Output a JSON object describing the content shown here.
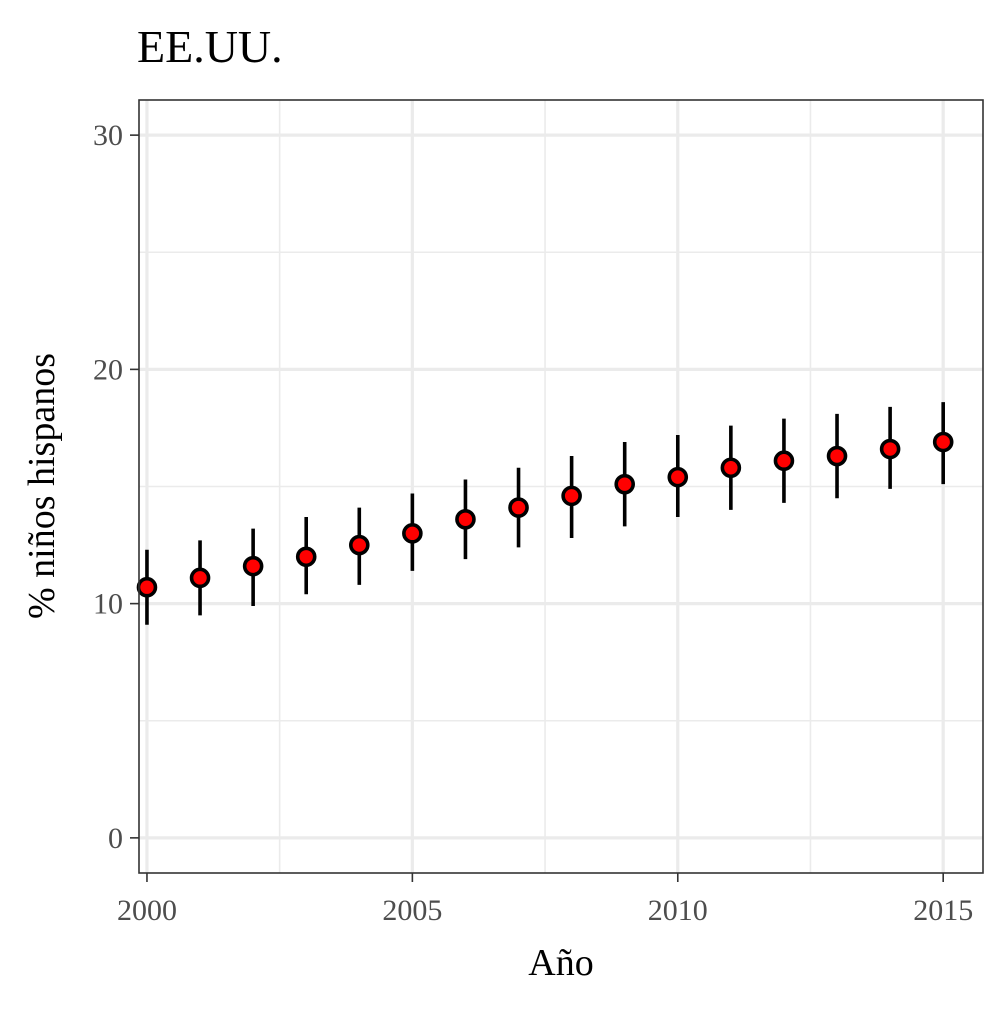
{
  "chart_data": {
    "type": "scatter",
    "title": "EE.UU.",
    "xlabel": "Año",
    "ylabel": "% niños hispanos",
    "xlim": [
      1999.85,
      2015.75
    ],
    "ylim": [
      -1.5,
      31.5
    ],
    "x_ticks": [
      2000,
      2005,
      2010,
      2015
    ],
    "y_ticks": [
      0,
      10,
      20,
      30
    ],
    "x_ticks_labels": [
      "2000",
      "2005",
      "2010",
      "2015"
    ],
    "y_ticks_labels": [
      "0",
      "10",
      "20",
      "30"
    ],
    "x_minor": [
      2002.5,
      2007.5,
      2012.5
    ],
    "y_minor": [
      5,
      15,
      25
    ],
    "grid": true,
    "legend": "none",
    "point_fill": "#ff0000",
    "point_stroke": "#000000",
    "errorbar_color": "#000000",
    "series": [
      {
        "x": [
          2000,
          2001,
          2002,
          2003,
          2004,
          2005,
          2006,
          2007,
          2008,
          2009,
          2010,
          2011,
          2012,
          2013,
          2014,
          2015
        ],
        "y": [
          10.7,
          11.1,
          11.6,
          12.0,
          12.5,
          13.0,
          13.6,
          14.1,
          14.6,
          15.1,
          15.4,
          15.8,
          16.1,
          16.3,
          16.6,
          16.9
        ],
        "ymin": [
          9.1,
          9.5,
          9.9,
          10.4,
          10.8,
          11.4,
          11.9,
          12.4,
          12.8,
          13.3,
          13.7,
          14.0,
          14.3,
          14.5,
          14.9,
          15.1
        ],
        "ymax": [
          12.3,
          12.7,
          13.2,
          13.7,
          14.1,
          14.7,
          15.3,
          15.8,
          16.3,
          16.9,
          17.2,
          17.6,
          17.9,
          18.1,
          18.4,
          18.6
        ]
      }
    ]
  }
}
